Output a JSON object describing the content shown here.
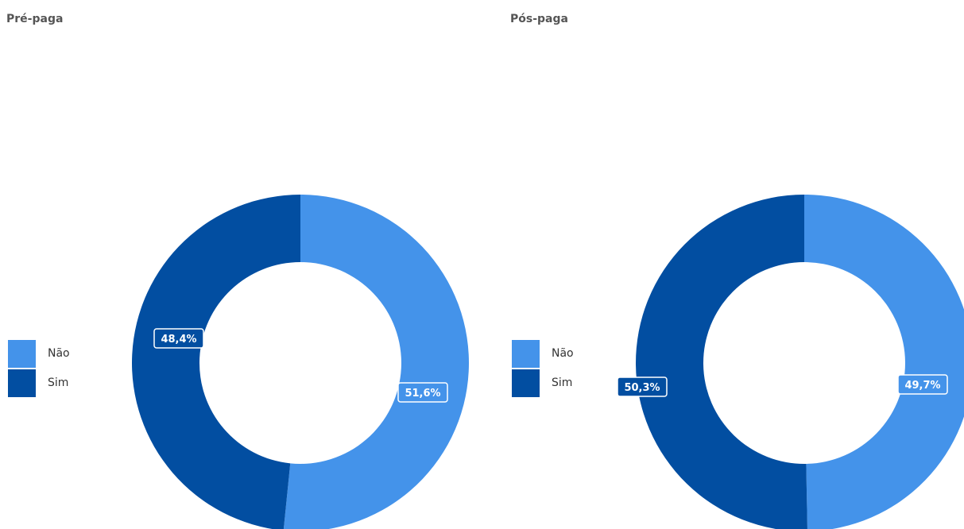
{
  "colors": {
    "nao": "#4493ea",
    "sim": "#024ea1"
  },
  "chart_data": [
    {
      "type": "pie",
      "title": "Pré-paga",
      "categories": [
        "Não",
        "Sim"
      ],
      "values": [
        51.6,
        48.4
      ],
      "data_labels": [
        "51,6%",
        "48,4%"
      ],
      "colors": [
        "#4493ea",
        "#024ea1"
      ],
      "donut": true,
      "legend": "left"
    },
    {
      "type": "pie",
      "title": "Pós-paga",
      "categories": [
        "Não",
        "Sim"
      ],
      "values": [
        49.7,
        50.3
      ],
      "data_labels": [
        "49,7%",
        "50,3%"
      ],
      "colors": [
        "#4493ea",
        "#024ea1"
      ],
      "donut": true,
      "legend": "left"
    }
  ]
}
